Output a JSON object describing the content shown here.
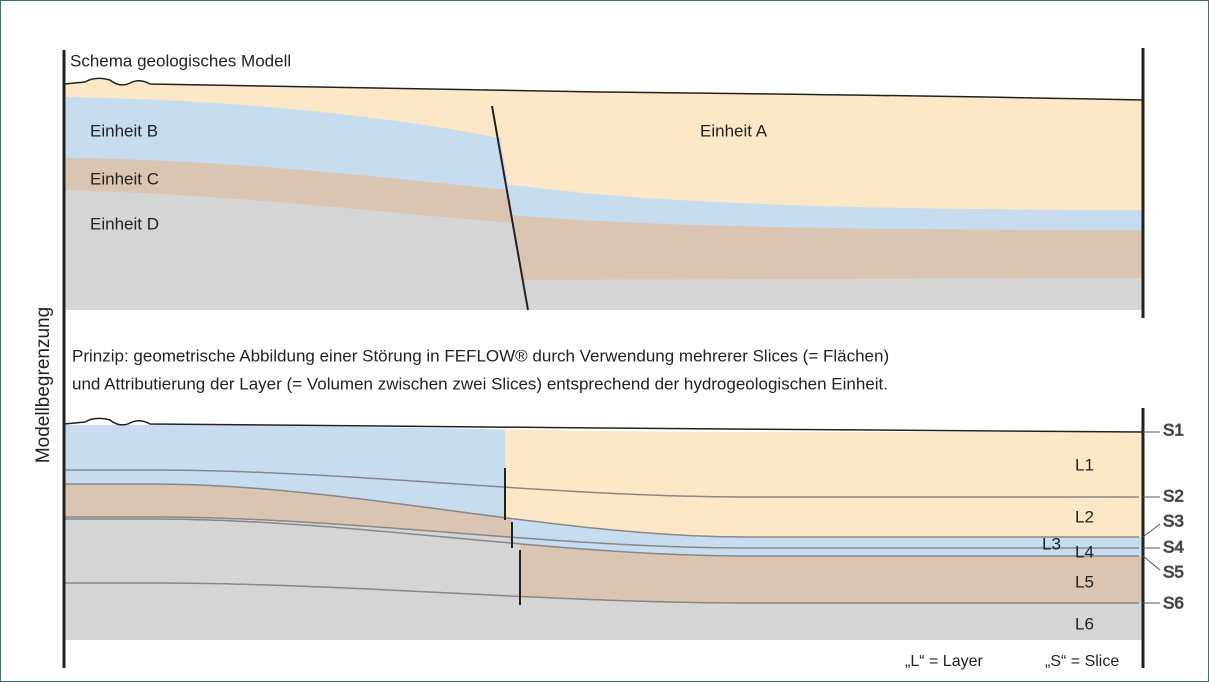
{
  "top": {
    "title": "Schema geologisches Modell",
    "units": [
      "Einheit A",
      "Einheit B",
      "Einheit C",
      "Einheit D"
    ]
  },
  "side_label": "Modellbegrenzung",
  "description": [
    "Prinzip: geometrische Abbildung einer Störung in FEFLOW® durch Verwendung mehrerer Slices (= Flächen)",
    "und Attributierung der Layer (= Volumen zwischen zwei Slices) entsprechend der hydrogeologischen Einheit."
  ],
  "slices": [
    "S1",
    "S2",
    "S3",
    "S4",
    "S5",
    "S6"
  ],
  "layers": [
    "L1",
    "L2",
    "L3",
    "L4",
    "L5",
    "L6"
  ],
  "legend": [
    "„L“ = Layer",
    "„S“ = Slice"
  ]
}
